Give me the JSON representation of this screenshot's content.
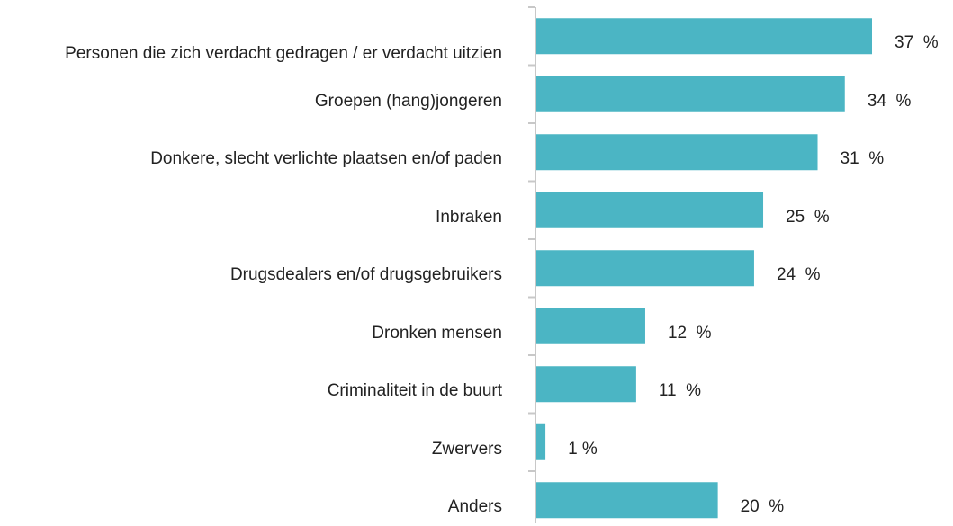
{
  "chart_data": {
    "type": "bar",
    "orientation": "horizontal",
    "categories": [
      "Personen die zich verdacht gedragen / er verdacht uitzien",
      "Groepen (hang)jongeren",
      "Donkere, slecht verlichte plaatsen en/of paden",
      "Inbraken",
      "Drugsdealers en/of drugsgebruikers",
      "Dronken mensen",
      "Criminaliteit in de buurt",
      "Zwervers",
      "Anders"
    ],
    "values": [
      37,
      34,
      31,
      25,
      24,
      12,
      11,
      1,
      20
    ],
    "value_labels": [
      "37  %",
      "34  %",
      "31  %",
      "25  %",
      "24  %",
      "12  %",
      "11  %",
      "1 %",
      "20  %"
    ],
    "color": "#4bb5c4"
  }
}
